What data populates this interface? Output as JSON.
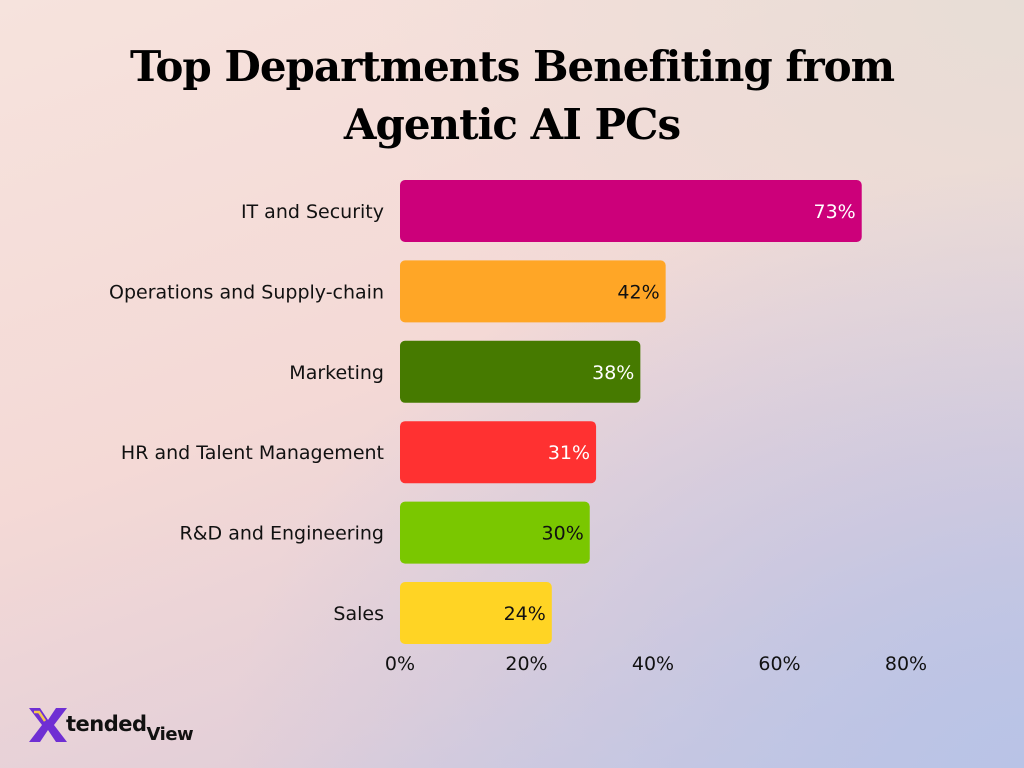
{
  "title": "Top Departments Benefiting from Agentic AI PCs",
  "logo": {
    "part1": "tended",
    "part2": "View",
    "mark": "X"
  },
  "colors": {
    "it": "#cc007a",
    "ops": "#ffa626",
    "marketing": "#467a00",
    "hr": "#ff3131",
    "rnd": "#7ac700",
    "sales": "#ffd424",
    "logo_purple": "#6f2fd3"
  },
  "chart_data": {
    "type": "bar",
    "orientation": "horizontal",
    "categories": [
      "IT and Security",
      "Operations and Supply-chain",
      "Marketing",
      "HR and Talent Management",
      "R&D and Engineering",
      "Sales"
    ],
    "values": [
      73,
      42,
      38,
      31,
      30,
      24
    ],
    "value_labels": [
      "73%",
      "42%",
      "38%",
      "31%",
      "30%",
      "24%"
    ],
    "bar_colors": [
      "#cc007a",
      "#ffa626",
      "#467a00",
      "#ff3131",
      "#7ac700",
      "#ffd424"
    ],
    "label_colors": [
      "#ffffff",
      "#111111",
      "#ffffff",
      "#ffffff",
      "#111111",
      "#111111"
    ],
    "xlim": [
      0,
      80
    ],
    "xticks": [
      0,
      20,
      40,
      60,
      80
    ],
    "xtick_labels": [
      "0%",
      "20%",
      "40%",
      "60%",
      "80%"
    ],
    "grid": false,
    "legend": "none"
  }
}
